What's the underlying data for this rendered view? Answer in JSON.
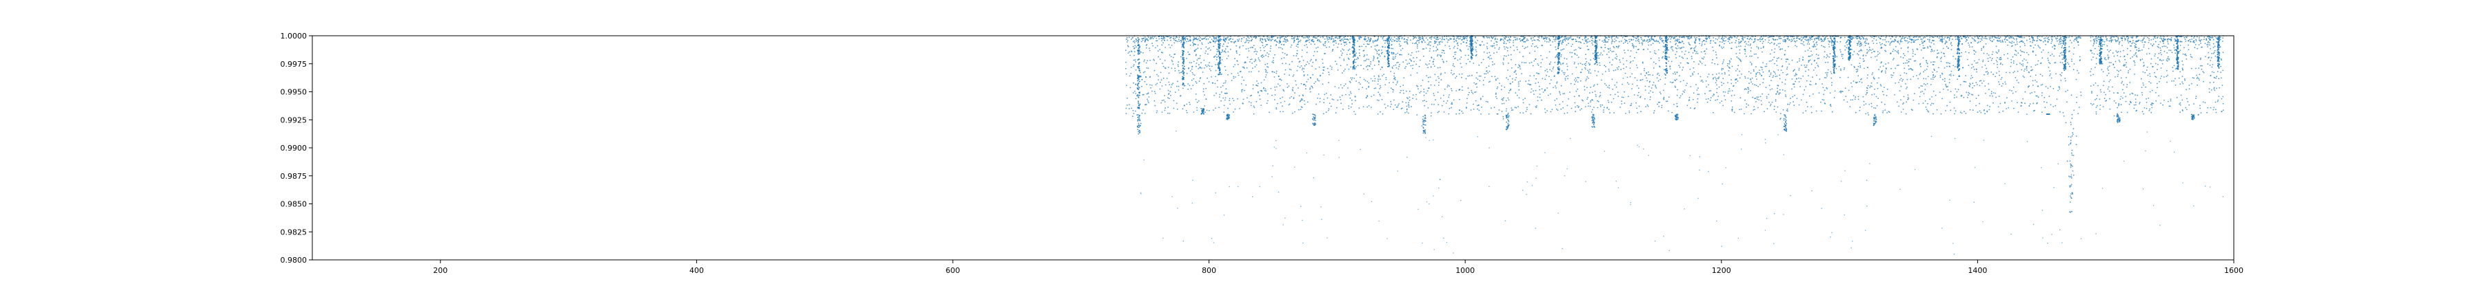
{
  "chart_data": {
    "type": "scatter",
    "title": "",
    "xlabel": "",
    "ylabel": "",
    "xlim": [
      100,
      1600
    ],
    "ylim": [
      0.98,
      1.0
    ],
    "x_ticks": [
      200,
      400,
      600,
      800,
      1000,
      1200,
      1400,
      1600
    ],
    "x_tick_labels": [
      "200",
      "400",
      "600",
      "800",
      "1000",
      "1200",
      "1400",
      "1600"
    ],
    "y_ticks": [
      0.98,
      0.9825,
      0.985,
      0.9875,
      0.99,
      0.9925,
      0.995,
      0.9975,
      1.0
    ],
    "y_tick_labels": [
      "0.9800",
      "0.9825",
      "0.9850",
      "0.9875",
      "0.9900",
      "0.9925",
      "0.9950",
      "0.9975",
      "1.0000"
    ],
    "grid": false,
    "legend": "none",
    "marker_color": "#1f77b4",
    "series": [
      {
        "x_range": [
          735,
          1592
        ],
        "gap_x_range": [
          1481,
          1488
        ],
        "typical_y_range": [
          0.9915,
          1.0
        ],
        "dense_y_range": [
          0.993,
          1.0
        ],
        "sparse_min_y": 0.9805,
        "dip_features": [
          {
            "x": 745,
            "min_y": 0.9912
          },
          {
            "x": 795,
            "min_y": 0.9935
          },
          {
            "x": 815,
            "min_y": 0.9925
          },
          {
            "x": 882,
            "min_y": 0.992
          },
          {
            "x": 968,
            "min_y": 0.9912
          },
          {
            "x": 1033,
            "min_y": 0.9915
          },
          {
            "x": 1100,
            "min_y": 0.9918
          },
          {
            "x": 1165,
            "min_y": 0.9925
          },
          {
            "x": 1250,
            "min_y": 0.9912
          },
          {
            "x": 1320,
            "min_y": 0.992
          },
          {
            "x": 1455,
            "min_y": 0.993
          },
          {
            "x": 1473,
            "min_y": 0.9842
          },
          {
            "x": 1510,
            "min_y": 0.9922
          },
          {
            "x": 1568,
            "min_y": 0.9925
          }
        ],
        "bright_columns": [
          {
            "x": 745,
            "min_y": 0.9935
          },
          {
            "x": 780,
            "min_y": 0.9955
          },
          {
            "x": 808,
            "min_y": 0.9965
          },
          {
            "x": 913,
            "min_y": 0.997
          },
          {
            "x": 940,
            "min_y": 0.9972
          },
          {
            "x": 1005,
            "min_y": 0.998
          },
          {
            "x": 1073,
            "min_y": 0.9965
          },
          {
            "x": 1102,
            "min_y": 0.9975
          },
          {
            "x": 1157,
            "min_y": 0.9965
          },
          {
            "x": 1288,
            "min_y": 0.9965
          },
          {
            "x": 1300,
            "min_y": 0.9978
          },
          {
            "x": 1385,
            "min_y": 0.9968
          },
          {
            "x": 1468,
            "min_y": 0.9968
          },
          {
            "x": 1496,
            "min_y": 0.9975
          },
          {
            "x": 1556,
            "min_y": 0.997
          },
          {
            "x": 1588,
            "min_y": 0.997
          }
        ]
      }
    ]
  }
}
